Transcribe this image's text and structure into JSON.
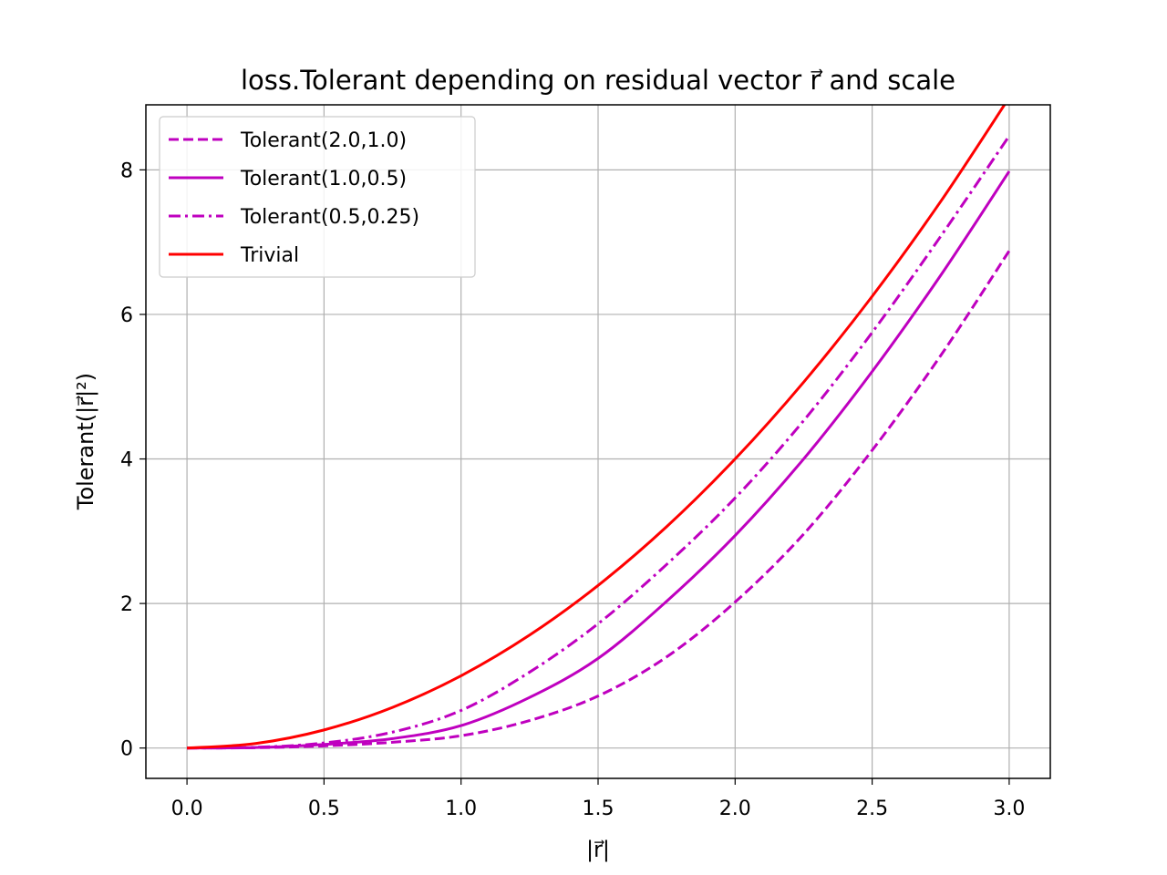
{
  "chart_data": {
    "type": "line",
    "title": "loss.Tolerant depending on residual vector r⃗ and scale",
    "xlabel": "|r⃗|",
    "ylabel": "Tolerant(|r⃗|²)",
    "xlim": [
      -0.15,
      3.15
    ],
    "ylim": [
      -0.42,
      8.9
    ],
    "xticks": [
      "0.0",
      "0.5",
      "1.0",
      "1.5",
      "2.0",
      "2.5",
      "3.0"
    ],
    "yticks": [
      "0",
      "2",
      "4",
      "6",
      "8"
    ],
    "grid": true,
    "legend_position": "upper left",
    "x": [
      0,
      0.25,
      0.5,
      0.75,
      1.0,
      1.25,
      1.5,
      1.75,
      2.0,
      2.25,
      2.5,
      2.75,
      3.0
    ],
    "series": [
      {
        "name": "Tolerant(2.0,1.0)",
        "style": "dashed",
        "color": "#bf00bf",
        "values": [
          0,
          0.004,
          0.03,
          0.08,
          0.17,
          0.38,
          0.72,
          1.26,
          2.02,
          2.96,
          4.12,
          5.43,
          6.88
        ]
      },
      {
        "name": "Tolerant(1.0,0.5)",
        "style": "solid",
        "color": "#bf00bf",
        "values": [
          0,
          0.007,
          0.05,
          0.13,
          0.31,
          0.7,
          1.24,
          2.03,
          2.94,
          4.0,
          5.21,
          6.54,
          7.98
        ]
      },
      {
        "name": "Tolerant(0.5,0.25)",
        "style": "dashdot",
        "color": "#bf00bf",
        "values": [
          0,
          0.01,
          0.07,
          0.22,
          0.52,
          1.05,
          1.72,
          2.54,
          3.46,
          4.53,
          5.75,
          7.08,
          8.47
        ]
      },
      {
        "name": "Trivial",
        "style": "solid",
        "color": "#ff0000",
        "values": [
          0,
          0.0625,
          0.25,
          0.5625,
          1.0,
          1.5625,
          2.25,
          3.0625,
          4.0,
          5.0625,
          6.25,
          7.5625,
          9.0
        ]
      }
    ]
  }
}
